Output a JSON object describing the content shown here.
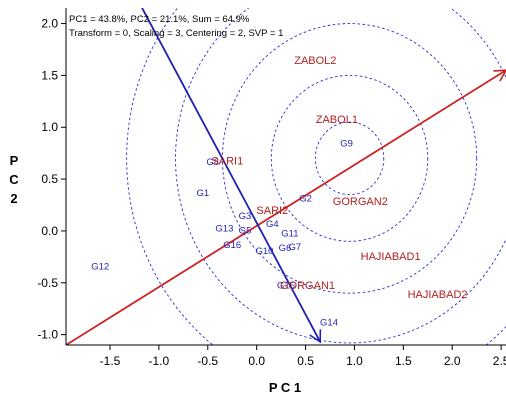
{
  "header": {
    "line1": "PC1 = 43.8%, PC2 = 21.1%, Sum = 64.9%",
    "line2": "Transform = 0, Scaling = 3, Centering = 2, SVP = 1"
  },
  "colors": {
    "genotype": "#1f1fb4",
    "environment": "#b32020",
    "red_vector": "#cc2222",
    "blue_vector": "#1f1fb4",
    "circles": "#2b2bd0"
  },
  "chart_data": {
    "type": "scatter",
    "xlabel": "P C 1",
    "ylabel": "P C 2",
    "xlim": [
      -1.95,
      2.55
    ],
    "ylim": [
      -1.1,
      2.15
    ],
    "xticks": [
      -1.5,
      -1.0,
      -0.5,
      0.0,
      0.5,
      1.0,
      1.5,
      2.0,
      2.5
    ],
    "yticks": [
      -1.0,
      -0.5,
      0.0,
      0.5,
      1.0,
      1.5,
      2.0
    ],
    "xtick_labels": [
      "-1.5",
      "-1.0",
      "-0.5",
      "0.0",
      "0.5",
      "1.0",
      "1.5",
      "2.0",
      "2.5"
    ],
    "ytick_labels": [
      "-1.0",
      "-0.5",
      "0.0",
      "0.5",
      "1.0",
      "1.5",
      "2.0"
    ],
    "grid": false,
    "concentric_circles": {
      "center": [
        0.95,
        0.7
      ],
      "radii": [
        0.35,
        0.8,
        1.3,
        1.78,
        2.28
      ]
    },
    "vectors": [
      {
        "color": "red",
        "from": [
          -1.95,
          -1.1
        ],
        "to": [
          2.55,
          1.55
        ]
      },
      {
        "color": "blue",
        "from": [
          -1.2,
          2.2
        ],
        "to": [
          0.65,
          -1.07
        ]
      }
    ],
    "genotypes": [
      {
        "label": "G1",
        "x": -0.55,
        "y": 0.36
      },
      {
        "label": "G2",
        "x": 0.5,
        "y": 0.31
      },
      {
        "label": "G3",
        "x": -0.12,
        "y": 0.14
      },
      {
        "label": "G4",
        "x": 0.16,
        "y": 0.06
      },
      {
        "label": "G5",
        "x": -0.12,
        "y": 0.0
      },
      {
        "label": "G6",
        "x": 0.29,
        "y": -0.17
      },
      {
        "label": "G7",
        "x": 0.39,
        "y": -0.16
      },
      {
        "label": "G8",
        "x": -0.45,
        "y": 0.66
      },
      {
        "label": "G9",
        "x": 0.92,
        "y": 0.84
      },
      {
        "label": "G10",
        "x": 0.08,
        "y": -0.2
      },
      {
        "label": "G11",
        "x": 0.34,
        "y": -0.03
      },
      {
        "label": "G12",
        "x": -1.6,
        "y": -0.35
      },
      {
        "label": "G13",
        "x": -0.33,
        "y": 0.02
      },
      {
        "label": "G14",
        "x": 0.74,
        "y": -0.89
      },
      {
        "label": "G15",
        "x": 0.3,
        "y": -0.53
      },
      {
        "label": "G16",
        "x": -0.25,
        "y": -0.14
      }
    ],
    "environments": [
      {
        "label": "ZABOL2",
        "x": 0.6,
        "y": 1.64
      },
      {
        "label": "ZABOL1",
        "x": 0.82,
        "y": 1.07
      },
      {
        "label": "SARI1",
        "x": -0.3,
        "y": 0.67
      },
      {
        "label": "SARI2",
        "x": 0.16,
        "y": 0.19
      },
      {
        "label": "GORGAN2",
        "x": 1.06,
        "y": 0.28
      },
      {
        "label": "HAJIABAD1",
        "x": 1.37,
        "y": -0.25
      },
      {
        "label": "GORGAN1",
        "x": 0.52,
        "y": -0.53
      },
      {
        "label": "HAJIABAD2",
        "x": 1.85,
        "y": -0.62
      }
    ]
  }
}
